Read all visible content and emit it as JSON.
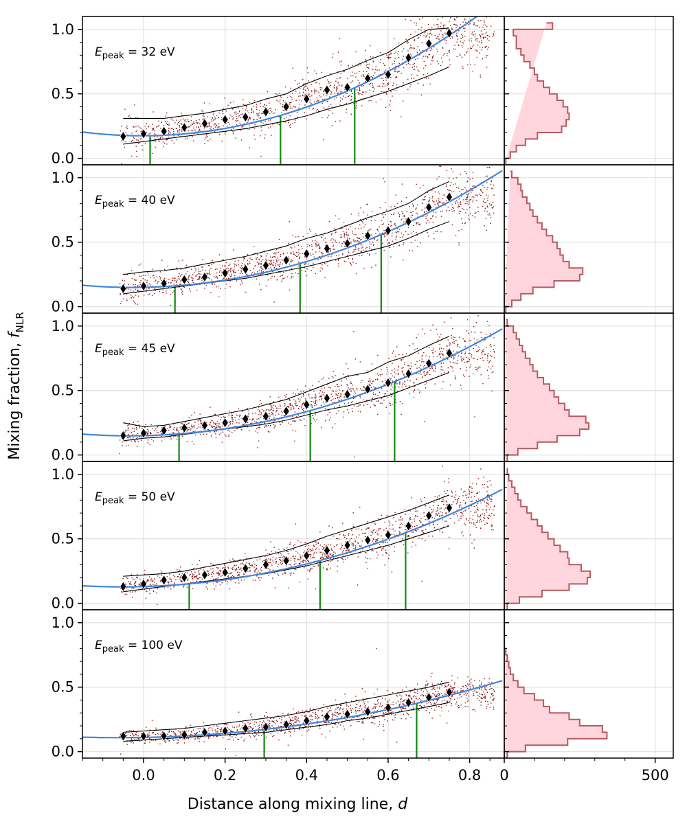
{
  "chart_data": {
    "type": "scatter",
    "ylabel_main": "Mixing fraction, ",
    "ylabel_sym": "f",
    "ylabel_sub": "NLR",
    "xlabel_main": "Distance along mixing line, ",
    "xlabel_sym": "d",
    "xlim": [
      -0.15,
      0.885
    ],
    "ylim": [
      -0.05,
      1.1
    ],
    "x_ticks": [
      0.0,
      0.2,
      0.4,
      0.6,
      0.8
    ],
    "x_tick_labels": [
      "0.0",
      "0.2",
      "0.4",
      "0.6",
      "0.8"
    ],
    "y_ticks": [
      0.0,
      0.5,
      1.0
    ],
    "y_tick_labels": [
      "0.0",
      "0.5",
      "1.0"
    ],
    "hist_xlim": [
      0,
      560
    ],
    "hist_ticks": [
      0,
      500
    ],
    "hist_tick_labels": [
      "0",
      "500"
    ],
    "colors": {
      "scatter": "#8b1a1a",
      "fit": "#3f86e0",
      "percentile": "#000000",
      "vline": "#118811",
      "hist_edge": "#b55a5f",
      "hist_fill": "#ffd6dd",
      "marker": "#000000",
      "grid": "#e3e3e3"
    },
    "bin_x": [
      -0.05,
      0.0,
      0.05,
      0.1,
      0.15,
      0.2,
      0.25,
      0.3,
      0.35,
      0.4,
      0.45,
      0.5,
      0.55,
      0.6,
      0.65,
      0.7,
      0.75
    ],
    "hist_bin_edges": [
      -0.05,
      0.0,
      0.05,
      0.1,
      0.15,
      0.2,
      0.25,
      0.3,
      0.35,
      0.4,
      0.45,
      0.5,
      0.55,
      0.6,
      0.65,
      0.7,
      0.75,
      0.8,
      0.85,
      0.9,
      0.95,
      1.0,
      1.05
    ],
    "panels": [
      {
        "label_main": "E",
        "label_sub": "peak",
        "label_value": " = 32 eV",
        "median": [
          0.17,
          0.19,
          0.21,
          0.24,
          0.27,
          0.3,
          0.32,
          0.36,
          0.4,
          0.46,
          0.53,
          0.55,
          0.62,
          0.65,
          0.78,
          0.89,
          0.97
        ],
        "upper": [
          0.31,
          0.31,
          0.31,
          0.33,
          0.35,
          0.38,
          0.41,
          0.46,
          0.5,
          0.58,
          0.64,
          0.69,
          0.76,
          0.82,
          0.92,
          1.0,
          1.01
        ],
        "lower": [
          0.11,
          0.13,
          0.15,
          0.17,
          0.19,
          0.21,
          0.23,
          0.26,
          0.29,
          0.33,
          0.38,
          0.42,
          0.47,
          0.52,
          0.58,
          0.64,
          0.71
        ],
        "fit": {
          "a": 0.175,
          "b": 0.01,
          "c": 1.37
        },
        "vlines": [
          0.016,
          0.336,
          0.518
        ],
        "hist_counts": [
          5,
          20,
          40,
          70,
          110,
          190,
          205,
          215,
          210,
          195,
          175,
          150,
          130,
          110,
          100,
          85,
          65,
          55,
          40,
          40,
          30,
          160,
          140
        ]
      },
      {
        "label_main": "E",
        "label_sub": "peak",
        "label_value": " = 40 eV",
        "median": [
          0.14,
          0.16,
          0.18,
          0.21,
          0.23,
          0.26,
          0.29,
          0.32,
          0.36,
          0.41,
          0.45,
          0.49,
          0.55,
          0.59,
          0.66,
          0.77,
          0.85
        ],
        "upper": [
          0.25,
          0.27,
          0.28,
          0.3,
          0.33,
          0.36,
          0.39,
          0.43,
          0.47,
          0.53,
          0.57,
          0.63,
          0.69,
          0.74,
          0.8,
          0.9,
          0.97
        ],
        "lower": [
          0.1,
          0.12,
          0.14,
          0.16,
          0.18,
          0.2,
          0.22,
          0.25,
          0.28,
          0.31,
          0.35,
          0.39,
          0.43,
          0.47,
          0.53,
          0.6,
          0.66
        ],
        "fit": {
          "a": 0.15,
          "b": 0.06,
          "c": 1.1
        },
        "vlines": [
          0.077,
          0.384,
          0.583
        ],
        "hist_counts": [
          5,
          25,
          55,
          95,
          165,
          250,
          260,
          215,
          195,
          185,
          175,
          160,
          140,
          125,
          110,
          95,
          85,
          75,
          60,
          55,
          45,
          25,
          20
        ]
      },
      {
        "label_main": "E",
        "label_sub": "peak",
        "label_value": " = 45 eV",
        "median": [
          0.15,
          0.17,
          0.19,
          0.21,
          0.23,
          0.25,
          0.28,
          0.3,
          0.34,
          0.39,
          0.44,
          0.47,
          0.51,
          0.56,
          0.63,
          0.71,
          0.79
        ],
        "upper": [
          0.25,
          0.22,
          0.23,
          0.26,
          0.29,
          0.32,
          0.35,
          0.39,
          0.43,
          0.49,
          0.55,
          0.61,
          0.64,
          0.72,
          0.77,
          0.85,
          0.92
        ],
        "lower": [
          0.11,
          0.13,
          0.14,
          0.16,
          0.18,
          0.2,
          0.22,
          0.24,
          0.27,
          0.31,
          0.35,
          0.38,
          0.42,
          0.46,
          0.52,
          0.58,
          0.64
        ],
        "fit": {
          "a": 0.15,
          "b": 0.07,
          "c": 0.99
        },
        "vlines": [
          0.087,
          0.409,
          0.616
        ],
        "hist_counts": [
          10,
          45,
          110,
          175,
          250,
          280,
          270,
          215,
          200,
          180,
          165,
          150,
          130,
          110,
          95,
          85,
          70,
          60,
          50,
          40,
          30,
          10,
          5
        ]
      },
      {
        "label_main": "E",
        "label_sub": "peak",
        "label_value": " = 50 eV",
        "median": [
          0.13,
          0.15,
          0.18,
          0.2,
          0.22,
          0.24,
          0.27,
          0.3,
          0.33,
          0.37,
          0.41,
          0.45,
          0.49,
          0.53,
          0.6,
          0.68,
          0.74
        ],
        "upper": [
          0.21,
          0.22,
          0.23,
          0.25,
          0.28,
          0.31,
          0.34,
          0.37,
          0.41,
          0.46,
          0.52,
          0.57,
          0.62,
          0.67,
          0.72,
          0.78,
          0.84
        ],
        "lower": [
          0.09,
          0.11,
          0.13,
          0.15,
          0.17,
          0.19,
          0.21,
          0.23,
          0.26,
          0.29,
          0.33,
          0.37,
          0.41,
          0.45,
          0.5,
          0.55,
          0.6
        ],
        "fit": {
          "a": 0.13,
          "b": 0.09,
          "c": 0.87
        },
        "vlines": [
          0.112,
          0.433,
          0.643
        ],
        "hist_counts": [
          10,
          50,
          125,
          215,
          275,
          285,
          255,
          215,
          210,
          185,
          165,
          145,
          125,
          110,
          90,
          75,
          55,
          45,
          35,
          25,
          15,
          10,
          10
        ]
      },
      {
        "label_main": "E",
        "label_sub": "peak",
        "label_value": " = 100 eV",
        "median": [
          0.12,
          0.12,
          0.12,
          0.13,
          0.15,
          0.16,
          0.18,
          0.19,
          0.21,
          0.24,
          0.27,
          0.29,
          0.31,
          0.34,
          0.38,
          0.42,
          0.46
        ],
        "upper": [
          0.15,
          0.16,
          0.17,
          0.18,
          0.2,
          0.22,
          0.24,
          0.26,
          0.28,
          0.31,
          0.35,
          0.38,
          0.41,
          0.44,
          0.47,
          0.5,
          0.54
        ],
        "lower": [
          0.08,
          0.09,
          0.1,
          0.11,
          0.12,
          0.13,
          0.14,
          0.15,
          0.17,
          0.19,
          0.21,
          0.24,
          0.26,
          0.29,
          0.32,
          0.35,
          0.38
        ],
        "fit": {
          "a": 0.11,
          "b": 0.06,
          "c": 0.5
        },
        "vlines": [
          0.296,
          0.67
        ],
        "hist_counts": [
          10,
          70,
          210,
          340,
          325,
          250,
          215,
          150,
          130,
          100,
          65,
          45,
          30,
          20,
          15,
          10,
          5,
          0,
          0,
          0,
          0,
          0,
          0
        ]
      }
    ]
  }
}
